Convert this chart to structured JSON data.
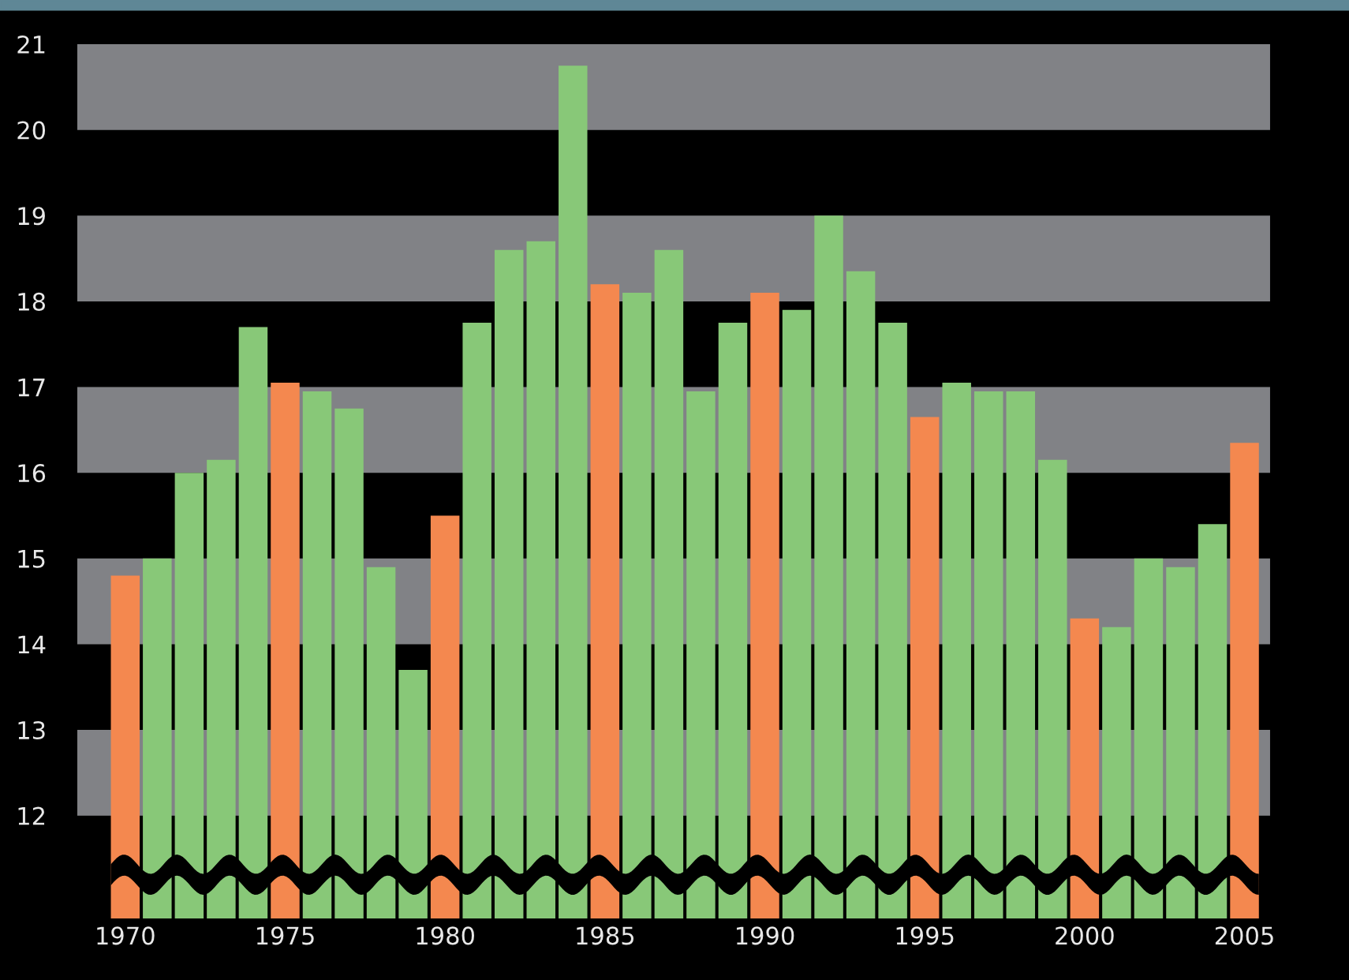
{
  "chart_data": {
    "type": "bar",
    "x": [
      1970,
      1971,
      1972,
      1973,
      1974,
      1975,
      1976,
      1977,
      1978,
      1979,
      1980,
      1981,
      1982,
      1983,
      1984,
      1985,
      1986,
      1987,
      1988,
      1989,
      1990,
      1991,
      1992,
      1993,
      1994,
      1995,
      1996,
      1997,
      1998,
      1999,
      2000,
      2001,
      2002,
      2003,
      2004,
      2005
    ],
    "values": [
      14.8,
      15.0,
      16.0,
      16.15,
      17.7,
      17.05,
      16.95,
      16.75,
      14.9,
      13.7,
      15.5,
      17.75,
      18.6,
      18.7,
      20.75,
      18.2,
      18.1,
      18.6,
      16.95,
      17.75,
      18.1,
      17.9,
      19.0,
      18.35,
      17.75,
      16.65,
      17.05,
      16.95,
      16.95,
      16.15,
      14.3,
      14.2,
      15.0,
      14.9,
      15.4,
      16.35
    ],
    "colors": [
      "#f4884f",
      "#88c878",
      "#88c878",
      "#88c878",
      "#88c878",
      "#f4884f",
      "#88c878",
      "#88c878",
      "#88c878",
      "#88c878",
      "#f4884f",
      "#88c878",
      "#88c878",
      "#88c878",
      "#88c878",
      "#f4884f",
      "#88c878",
      "#88c878",
      "#88c878",
      "#88c878",
      "#f4884f",
      "#88c878",
      "#88c878",
      "#88c878",
      "#88c878",
      "#f4884f",
      "#88c878",
      "#88c878",
      "#88c878",
      "#88c878",
      "#f4884f",
      "#88c878",
      "#88c878",
      "#88c878",
      "#88c878",
      "#f4884f"
    ],
    "xlim": [
      1968.5,
      2005.8
    ],
    "xticks": [
      1970,
      1975,
      1980,
      1985,
      1990,
      1995,
      2000,
      2005
    ],
    "ylim": [
      10.8,
      21
    ],
    "yticks": [
      12,
      13,
      14,
      15,
      16,
      17,
      18,
      19,
      20,
      21
    ],
    "bands": [
      {
        "axis": "y",
        "from": 12,
        "to": 13,
        "color": "#818286"
      },
      {
        "axis": "y",
        "from": 14,
        "to": 15,
        "color": "#818286"
      },
      {
        "axis": "y",
        "from": 16,
        "to": 17,
        "color": "#818286"
      },
      {
        "axis": "y",
        "from": 18,
        "to": 19,
        "color": "#818286"
      },
      {
        "axis": "y",
        "from": 20,
        "to": 21,
        "color": "#818286"
      }
    ],
    "grid": false,
    "legend": false
  }
}
